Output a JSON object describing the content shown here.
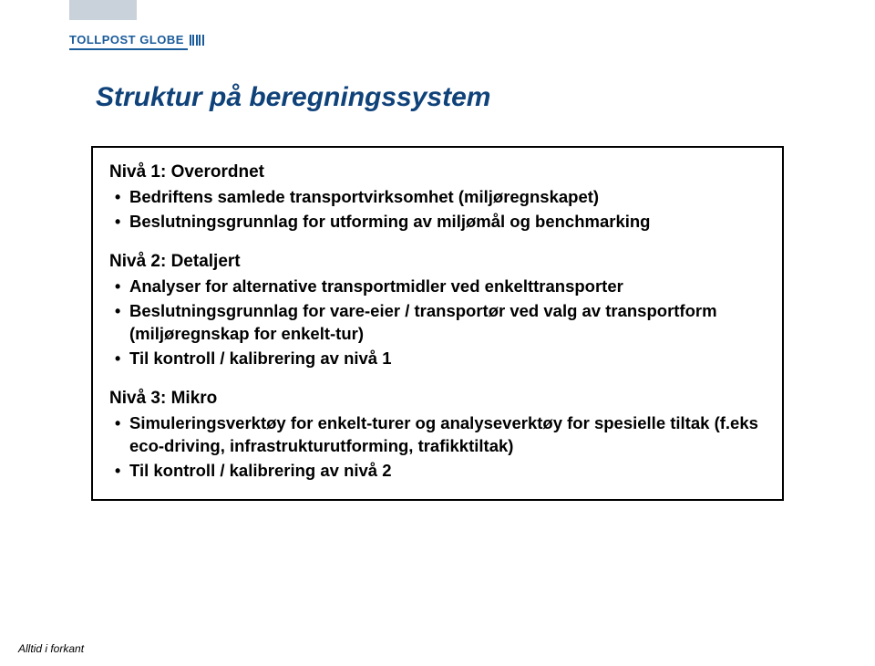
{
  "logo": {
    "text": "TOLLPOST GLOBE"
  },
  "title": "Struktur på beregningssystem",
  "sections": [
    {
      "heading": "Nivå 1:  Overordnet",
      "bullets": [
        "Bedriftens samlede transportvirksomhet (miljøregnskapet)",
        "Beslutningsgrunnlag for utforming av miljømål og benchmarking"
      ]
    },
    {
      "heading": "Nivå 2:  Detaljert",
      "bullets": [
        "Analyser for alternative transportmidler ved enkelttransporter",
        "Beslutningsgrunnlag for vare-eier / transportør ved valg av transportform (miljøregnskap for enkelt-tur)",
        "Til kontroll / kalibrering av nivå 1"
      ]
    },
    {
      "heading": "Nivå 3:  Mikro",
      "bullets": [
        "Simuleringsverktøy for enkelt-turer og analyseverktøy for spesielle tiltak (f.eks eco-driving, infrastrukturutforming, trafikktiltak)",
        "Til kontroll / kalibrering av nivå 2"
      ]
    }
  ],
  "footer": "Alltid i forkant",
  "colors": {
    "brand": "#1a5b9a",
    "title": "#10427a",
    "tab": "#c9d1da",
    "border": "#000000",
    "background": "#ffffff"
  },
  "typography": {
    "title_fontsize": 30,
    "heading_fontsize": 19,
    "bullet_fontsize": 18.5,
    "footer_fontsize": 12
  }
}
